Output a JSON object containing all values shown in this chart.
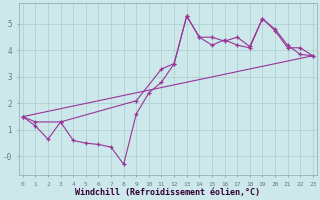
{
  "background_color": "#cce8ea",
  "grid_color": "#aacccc",
  "line_color": "#993399",
  "xlabel": "Windchill (Refroidissement éolien,°C)",
  "xlim": [
    -0.3,
    23.3
  ],
  "ylim": [
    -0.7,
    5.8
  ],
  "yticks": [
    0,
    1,
    2,
    3,
    4,
    5
  ],
  "ytick_labels": [
    "-0",
    "1",
    "2",
    "3",
    "4",
    "5"
  ],
  "xticks": [
    0,
    1,
    2,
    3,
    4,
    5,
    6,
    7,
    8,
    9,
    10,
    11,
    12,
    13,
    14,
    15,
    16,
    17,
    18,
    19,
    20,
    21,
    22,
    23
  ],
  "line1_x": [
    0,
    1,
    2,
    3,
    4,
    5,
    6,
    7,
    8,
    9,
    10,
    11,
    12,
    13,
    14,
    15,
    16,
    17,
    18,
    19,
    20,
    21,
    22,
    23
  ],
  "line1_y": [
    1.5,
    1.15,
    0.65,
    1.3,
    0.6,
    0.5,
    0.45,
    0.35,
    -0.3,
    1.6,
    2.4,
    2.8,
    3.5,
    5.3,
    4.5,
    4.2,
    4.4,
    4.2,
    4.1,
    5.2,
    4.75,
    4.1,
    4.1,
    3.8
  ],
  "line2_x": [
    0,
    23
  ],
  "line2_y": [
    1.5,
    3.8
  ],
  "line3_x": [
    0,
    1,
    3,
    9,
    11,
    12,
    13,
    14,
    15,
    16,
    17,
    18,
    19,
    20,
    21,
    22,
    23
  ],
  "line3_y": [
    1.5,
    1.3,
    1.3,
    2.1,
    3.3,
    3.5,
    5.3,
    4.5,
    4.5,
    4.35,
    4.5,
    4.15,
    5.2,
    4.8,
    4.2,
    3.85,
    3.8
  ]
}
